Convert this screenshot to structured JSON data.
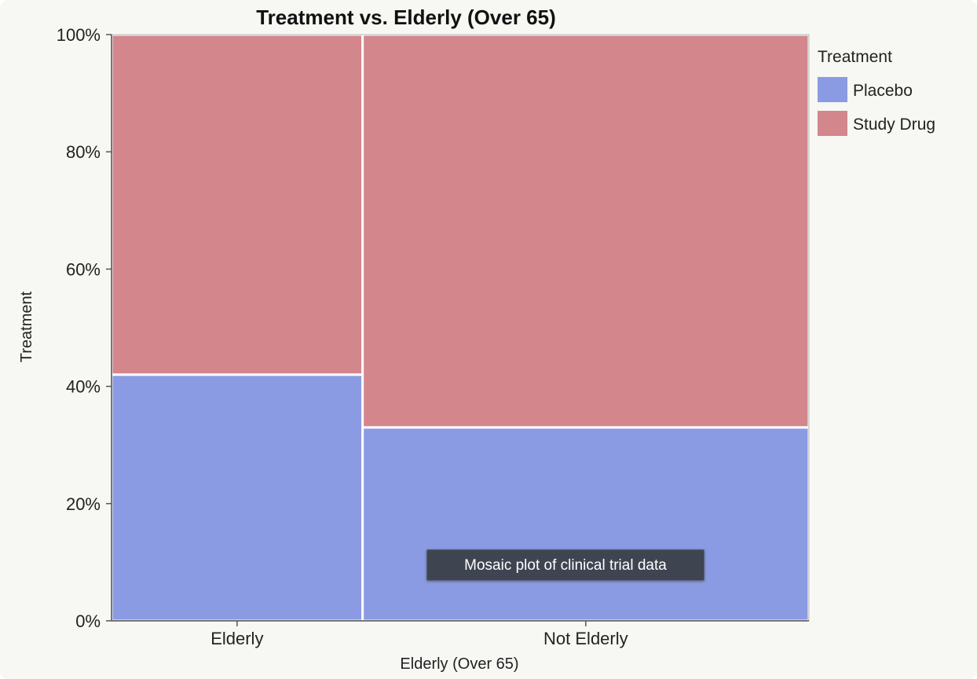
{
  "chart_data": {
    "type": "mosaic",
    "title": "Treatment vs. Elderly (Over 65)",
    "xlabel": "Elderly (Over 65)",
    "ylabel": "Treatment",
    "y_ticks": [
      "0%",
      "20%",
      "40%",
      "60%",
      "80%",
      "100%"
    ],
    "ylim": [
      0,
      100
    ],
    "categories": [
      "Elderly",
      "Not Elderly"
    ],
    "category_share": [
      0.36,
      0.64
    ],
    "series": [
      {
        "name": "Placebo",
        "color": "#8a9be3",
        "values": [
          42,
          33
        ]
      },
      {
        "name": "Study Drug",
        "color": "#d4868d",
        "values": [
          58,
          67
        ]
      }
    ],
    "legend": {
      "title": "Treatment",
      "position": "right"
    },
    "grid": false
  },
  "tooltip": {
    "text": "Mosaic plot of clinical trial data"
  }
}
